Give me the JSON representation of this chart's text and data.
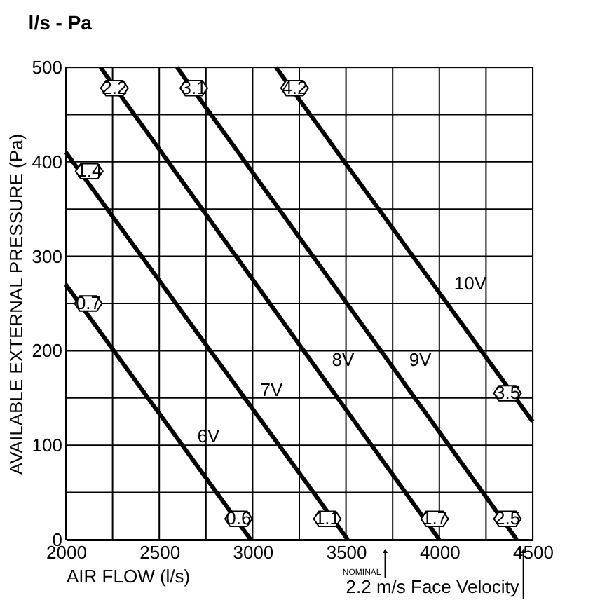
{
  "chart_data": {
    "type": "line",
    "title": "l/s - Pa",
    "xlabel": "AIR FLOW (l/s)",
    "ylabel": "AVAILABLE EXTERNAL PRESSURE (Pa)",
    "series": [
      {
        "name": "6V",
        "color": "#000000",
        "x": [
          2000,
          2990
        ],
        "values": [
          270,
          0
        ]
      },
      {
        "name": "7V",
        "color": "#000000",
        "x": [
          2000,
          3510
        ],
        "values": [
          410,
          0
        ]
      },
      {
        "name": "8V",
        "color": "#000000",
        "x": [
          2185,
          4000
        ],
        "values": [
          500,
          0
        ]
      },
      {
        "name": "9V",
        "color": "#000000",
        "x": [
          2595,
          4415
        ],
        "values": [
          500,
          0
        ]
      },
      {
        "name": "10V",
        "color": "#000000",
        "x": [
          3125,
          4500
        ],
        "values": [
          500,
          125
        ]
      }
    ],
    "xlim": [
      2000,
      4500
    ],
    "xticks": [
      2000,
      {
        "value": 2250,
        "label": null
      },
      2500,
      {
        "value": 2750,
        "label": null
      },
      3000,
      {
        "value": 3250,
        "label": null
      },
      3500,
      {
        "value": 3750,
        "label": null
      },
      4000,
      {
        "value": 4250,
        "label": null
      },
      4500
    ],
    "ylim": [
      0,
      500
    ],
    "yticks": [
      0,
      {
        "value": 50,
        "label": null
      },
      100,
      {
        "value": 150,
        "label": null
      },
      200,
      {
        "value": 250,
        "label": null
      },
      300,
      {
        "value": 350,
        "label": null
      },
      400,
      {
        "value": 450,
        "label": null
      },
      500
    ],
    "grid": true,
    "legend": false,
    "marker": "none",
    "line_style": "solid",
    "annotations": [
      {
        "text": "0.7",
        "x": 2120,
        "y": 250
      },
      {
        "text": "1.4",
        "x": 2125,
        "y": 390
      },
      {
        "text": "2.2",
        "x": 2260,
        "y": 478
      },
      {
        "text": "3.1",
        "x": 2685,
        "y": 478
      },
      {
        "text": "4.2",
        "x": 3225,
        "y": 478
      },
      {
        "text": "3.5",
        "x": 4365,
        "y": 155
      },
      {
        "text": "0.6",
        "x": 2925,
        "y": 22
      },
      {
        "text": "1.1",
        "x": 3400,
        "y": 22
      },
      {
        "text": "1.7",
        "x": 3975,
        "y": 22
      },
      {
        "text": "2.5",
        "x": 4365,
        "y": 22
      },
      "NOMINAL",
      "2.2 m/s Face Velocity"
    ]
  }
}
